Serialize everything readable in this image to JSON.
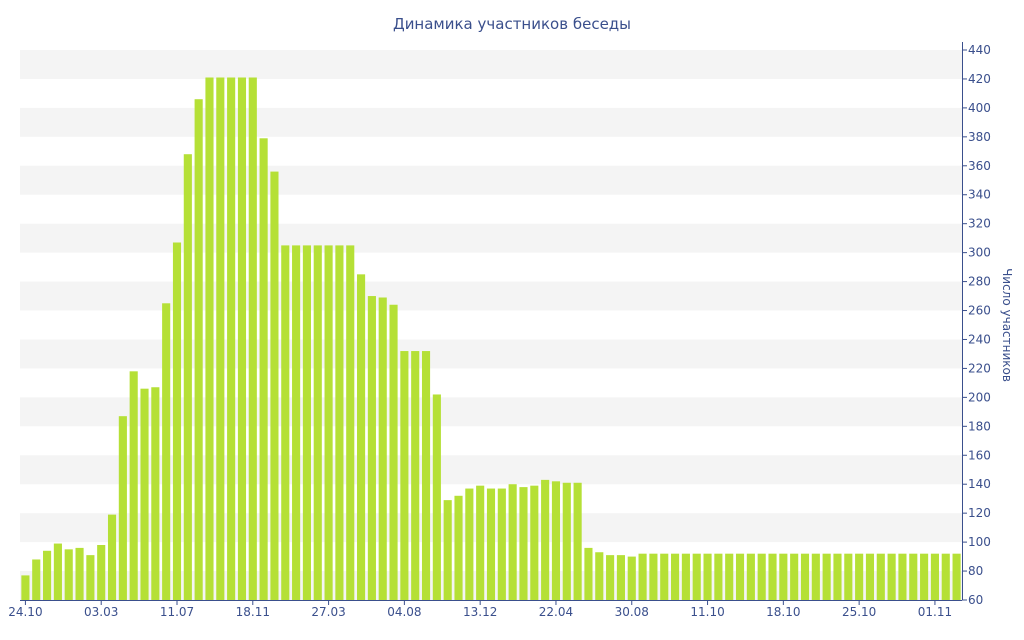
{
  "chart_data": {
    "type": "bar",
    "title": "Динамика участников беседы",
    "xlabel": "",
    "ylabel": "Число участников",
    "ylim": [
      60,
      440
    ],
    "y_ticks": [
      60,
      80,
      100,
      120,
      140,
      160,
      180,
      200,
      220,
      240,
      260,
      280,
      300,
      320,
      340,
      360,
      380,
      400,
      420,
      440
    ],
    "y_axis_side": "right",
    "x_tick_labels": [
      {
        "label": "24.10",
        "index": 0
      },
      {
        "label": "03.03",
        "index": 7
      },
      {
        "label": "11.07",
        "index": 14
      },
      {
        "label": "18.11",
        "index": 21
      },
      {
        "label": "27.03",
        "index": 28
      },
      {
        "label": "04.08",
        "index": 35
      },
      {
        "label": "13.12",
        "index": 42
      },
      {
        "label": "22.04",
        "index": 49
      },
      {
        "label": "30.08",
        "index": 56
      },
      {
        "label": "11.10",
        "index": 63
      },
      {
        "label": "18.10",
        "index": 70
      },
      {
        "label": "25.10",
        "index": 77
      },
      {
        "label": "01.11",
        "index": 84
      }
    ],
    "values": [
      77,
      88,
      94,
      99,
      95,
      96,
      91,
      98,
      119,
      187,
      218,
      206,
      207,
      265,
      307,
      368,
      406,
      421,
      421,
      421,
      421,
      421,
      379,
      356,
      305,
      305,
      305,
      305,
      305,
      305,
      305,
      285,
      270,
      269,
      264,
      232,
      232,
      232,
      202,
      129,
      132,
      137,
      139,
      137,
      137,
      140,
      138,
      139,
      143,
      142,
      141,
      141,
      96,
      93,
      91,
      91,
      90,
      92,
      92,
      92,
      92,
      92,
      92,
      92,
      92,
      92,
      92,
      92,
      92,
      92,
      92,
      92,
      92,
      92,
      92,
      92,
      92,
      92,
      92,
      92,
      92,
      92,
      92,
      92,
      92,
      92,
      92
    ],
    "grid": "alternating horizontal bands",
    "colors": {
      "bar": "#b5e036",
      "band": "#f4f4f4",
      "text": "#3a4f8c",
      "axis": "#3a4f8c"
    }
  }
}
